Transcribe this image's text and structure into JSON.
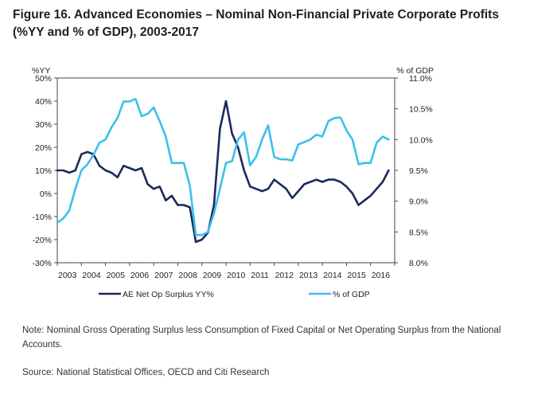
{
  "figure": {
    "title": "Figure 16. Advanced Economies – Nominal Non-Financial Private Corporate Profits (%YY and % of GDP), 2003-2017",
    "note": "Note: Nominal Gross Operating Surplus less Consumption of Fixed Capital or Net Operating Surplus from the National Accounts.",
    "source": "Source: National Statistical Offices, OECD and Citi Research"
  },
  "chart_data": {
    "type": "line",
    "title": "Figure 16. Advanced Economies – Nominal Non-Financial Private Corporate Profits (%YY and % of GDP), 2003-2017",
    "ylabel_left": "%YY",
    "ylabel_right": "% of GDP",
    "ylim_left": [
      -30,
      50
    ],
    "ylim_right": [
      8.0,
      11.0
    ],
    "yticks_left": [
      "50%",
      "40%",
      "30%",
      "20%",
      "10%",
      "0%",
      "-10%",
      "-20%",
      "-30%"
    ],
    "yticks_right": [
      "11.0%",
      "10.5%",
      "10.0%",
      "9.5%",
      "9.0%",
      "8.5%",
      "8.0%"
    ],
    "x_ticks": [
      "2003",
      "2004",
      "2005",
      "2006",
      "2007",
      "2008",
      "2009",
      "2010",
      "2011",
      "2012",
      "2013",
      "2014",
      "2015",
      "2016"
    ],
    "xlim": [
      2003.0,
      2017.0
    ],
    "grid": false,
    "legend_position": "bottom",
    "series": [
      {
        "name": "AE Net Op Surplus YY%",
        "axis": "left",
        "color": "#1b2a5c",
        "x": [
          2003.0,
          2003.25,
          2003.5,
          2003.75,
          2004.0,
          2004.25,
          2004.5,
          2004.75,
          2005.0,
          2005.25,
          2005.5,
          2005.75,
          2006.0,
          2006.25,
          2006.5,
          2006.75,
          2007.0,
          2007.25,
          2007.5,
          2007.75,
          2008.0,
          2008.25,
          2008.5,
          2008.75,
          2009.0,
          2009.25,
          2009.5,
          2009.75,
          2010.0,
          2010.25,
          2010.5,
          2010.75,
          2011.0,
          2011.25,
          2011.5,
          2011.75,
          2012.0,
          2012.25,
          2012.5,
          2012.75,
          2013.0,
          2013.25,
          2013.5,
          2013.75,
          2014.0,
          2014.25,
          2014.5,
          2014.75,
          2015.0,
          2015.25,
          2015.5,
          2015.75,
          2016.0,
          2016.25,
          2016.5,
          2016.75
        ],
        "values": [
          10,
          10,
          9,
          10,
          17,
          18,
          17,
          12,
          10,
          9,
          7,
          12,
          11,
          10,
          11,
          4,
          2,
          3,
          -3,
          -1,
          -5,
          -5,
          -6,
          -21,
          -20,
          -17,
          -5,
          28,
          40,
          26,
          20,
          10,
          3,
          2,
          1,
          2,
          6,
          4,
          2,
          -2,
          1,
          4,
          5,
          6,
          5,
          6,
          6,
          5,
          3,
          0,
          -5,
          -3,
          -1,
          2,
          5,
          10
        ]
      },
      {
        "name": "% of GDP",
        "axis": "right",
        "color": "#3cc0ec",
        "x": [
          2003.0,
          2003.25,
          2003.5,
          2003.75,
          2004.0,
          2004.25,
          2004.5,
          2004.75,
          2005.0,
          2005.25,
          2005.5,
          2005.75,
          2006.0,
          2006.25,
          2006.5,
          2006.75,
          2007.0,
          2007.25,
          2007.5,
          2007.75,
          2008.0,
          2008.25,
          2008.5,
          2008.75,
          2009.0,
          2009.25,
          2009.5,
          2009.75,
          2010.0,
          2010.25,
          2010.5,
          2010.75,
          2011.0,
          2011.25,
          2011.5,
          2011.75,
          2012.0,
          2012.25,
          2012.5,
          2012.75,
          2013.0,
          2013.25,
          2013.5,
          2013.75,
          2014.0,
          2014.25,
          2014.5,
          2014.75,
          2015.0,
          2015.25,
          2015.5,
          2015.75,
          2016.0,
          2016.25,
          2016.5,
          2016.75
        ],
        "values": [
          8.65,
          8.72,
          8.85,
          9.2,
          9.5,
          9.6,
          9.75,
          9.95,
          10.0,
          10.2,
          10.35,
          10.62,
          10.62,
          10.66,
          10.38,
          10.42,
          10.52,
          10.3,
          10.05,
          9.62,
          9.62,
          9.62,
          9.25,
          8.45,
          8.45,
          8.5,
          8.8,
          9.2,
          9.62,
          9.65,
          10.0,
          10.12,
          9.58,
          9.72,
          10.0,
          10.23,
          9.72,
          9.68,
          9.68,
          9.66,
          9.92,
          9.96,
          10.0,
          10.08,
          10.05,
          10.3,
          10.35,
          10.36,
          10.15,
          10.0,
          9.6,
          9.62,
          9.62,
          9.95,
          10.05,
          10.0
        ]
      }
    ]
  }
}
